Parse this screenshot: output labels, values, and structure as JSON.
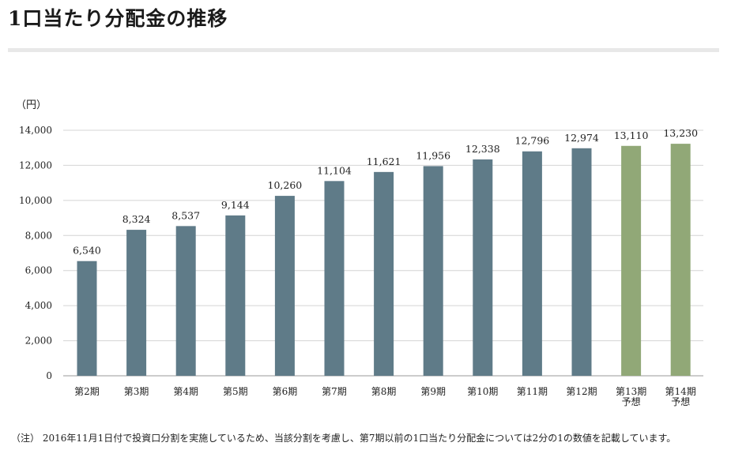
{
  "page": {
    "title": "1口当たり分配金の推移",
    "unit_label": "（円）",
    "footnote": "（注） 2016年11月1日付で投資口分割を実施しているため、当該分割を考慮し、第7期以前の1口当たり分配金については2分の1の数値を記載しています。"
  },
  "chart_data": {
    "type": "bar",
    "title": "1口当たり分配金の推移",
    "ylabel": "（円）",
    "xlabel": "",
    "ylim": [
      0,
      14000
    ],
    "y_ticks": [
      "0",
      "2,000",
      "4,000",
      "6,000",
      "8,000",
      "10,000",
      "12,000",
      "14,000"
    ],
    "grid": true,
    "colors": {
      "actual": "#5f7b88",
      "forecast": "#91a877"
    },
    "categories": [
      [
        "第2期"
      ],
      [
        "第3期"
      ],
      [
        "第4期"
      ],
      [
        "第5期"
      ],
      [
        "第6期"
      ],
      [
        "第7期"
      ],
      [
        "第8期"
      ],
      [
        "第9期"
      ],
      [
        "第10期"
      ],
      [
        "第11期"
      ],
      [
        "第12期"
      ],
      [
        "第13期",
        "予想"
      ],
      [
        "第14期",
        "予想"
      ]
    ],
    "values": [
      6540,
      8324,
      8537,
      9144,
      10260,
      11104,
      11621,
      11956,
      12338,
      12796,
      12974,
      13110,
      13230
    ],
    "value_labels": [
      "6,540",
      "8,324",
      "8,537",
      "9,144",
      "10,260",
      "11,104",
      "11,621",
      "11,956",
      "12,338",
      "12,796",
      "12,974",
      "13,110",
      "13,230"
    ],
    "forecast": [
      false,
      false,
      false,
      false,
      false,
      false,
      false,
      false,
      false,
      false,
      false,
      true,
      true
    ]
  }
}
